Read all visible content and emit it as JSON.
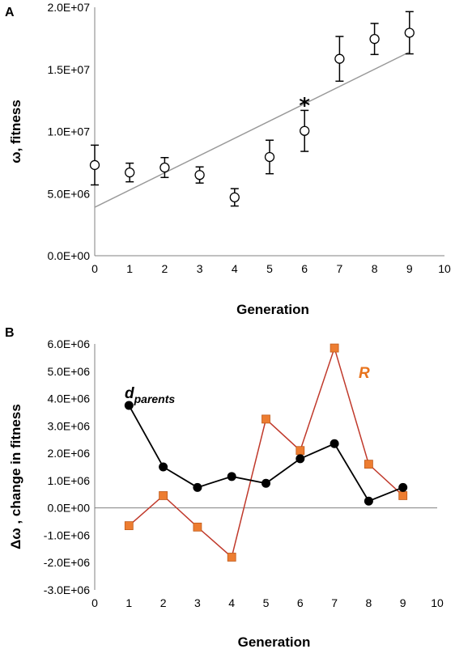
{
  "chart_data": [
    {
      "panel": "A",
      "type": "scatter",
      "xlabel": "Generation",
      "ylabel": "ω, fitness",
      "xlim": [
        0,
        10
      ],
      "ylim": [
        0,
        20000000
      ],
      "xticks": [
        "0",
        "1",
        "2",
        "3",
        "4",
        "5",
        "6",
        "7",
        "8",
        "9",
        "10"
      ],
      "yticks": [
        "0.0E+00",
        "5.0E+06",
        "1.0E+07",
        "1.5E+07",
        "2.0E+07"
      ],
      "grid": false,
      "x": [
        0,
        1,
        2,
        3,
        4,
        5,
        6,
        7,
        8,
        9
      ],
      "y": [
        7300000,
        6700000,
        7100000,
        6500000,
        4700000,
        7950000,
        10050000,
        15850000,
        17450000,
        17950000
      ],
      "err": [
        1600000,
        750000,
        800000,
        650000,
        700000,
        1350000,
        1650000,
        1800000,
        1250000,
        1700000
      ],
      "trendline": {
        "x": [
          0,
          9
        ],
        "y": [
          3900000,
          16400000
        ],
        "color": "#999999"
      },
      "annotation": {
        "text": "*",
        "x": 6,
        "y": 12300000
      }
    },
    {
      "panel": "B",
      "type": "line",
      "xlabel": "Generation",
      "ylabel": "Δω , change in fitness",
      "xlim": [
        0,
        10
      ],
      "ylim": [
        -3000000,
        6000000
      ],
      "xticks": [
        "0",
        "1",
        "2",
        "3",
        "4",
        "5",
        "6",
        "7",
        "8",
        "9",
        "10"
      ],
      "yticks": [
        "-3.0E+06",
        "-2.0E+06",
        "-1.0E+06",
        "0.0E+00",
        "1.0E+06",
        "2.0E+06",
        "3.0E+06",
        "4.0E+06",
        "5.0E+06",
        "6.0E+06"
      ],
      "grid": false,
      "x": [
        1,
        2,
        3,
        4,
        5,
        6,
        7,
        8,
        9
      ],
      "series": [
        {
          "name": "d",
          "subscript": "parents",
          "color": "#000000",
          "marker": "circle",
          "values": [
            3750000,
            1500000,
            750000,
            1150000,
            900000,
            1800000,
            2350000,
            250000,
            750000
          ]
        },
        {
          "name": "R",
          "color": "#c0392b",
          "marker_color": "#ed7d31",
          "label_color": "#e8731c",
          "marker": "square",
          "values": [
            -650000,
            450000,
            -700000,
            -1800000,
            3250000,
            2100000,
            5850000,
            1600000,
            450000
          ]
        }
      ]
    }
  ]
}
